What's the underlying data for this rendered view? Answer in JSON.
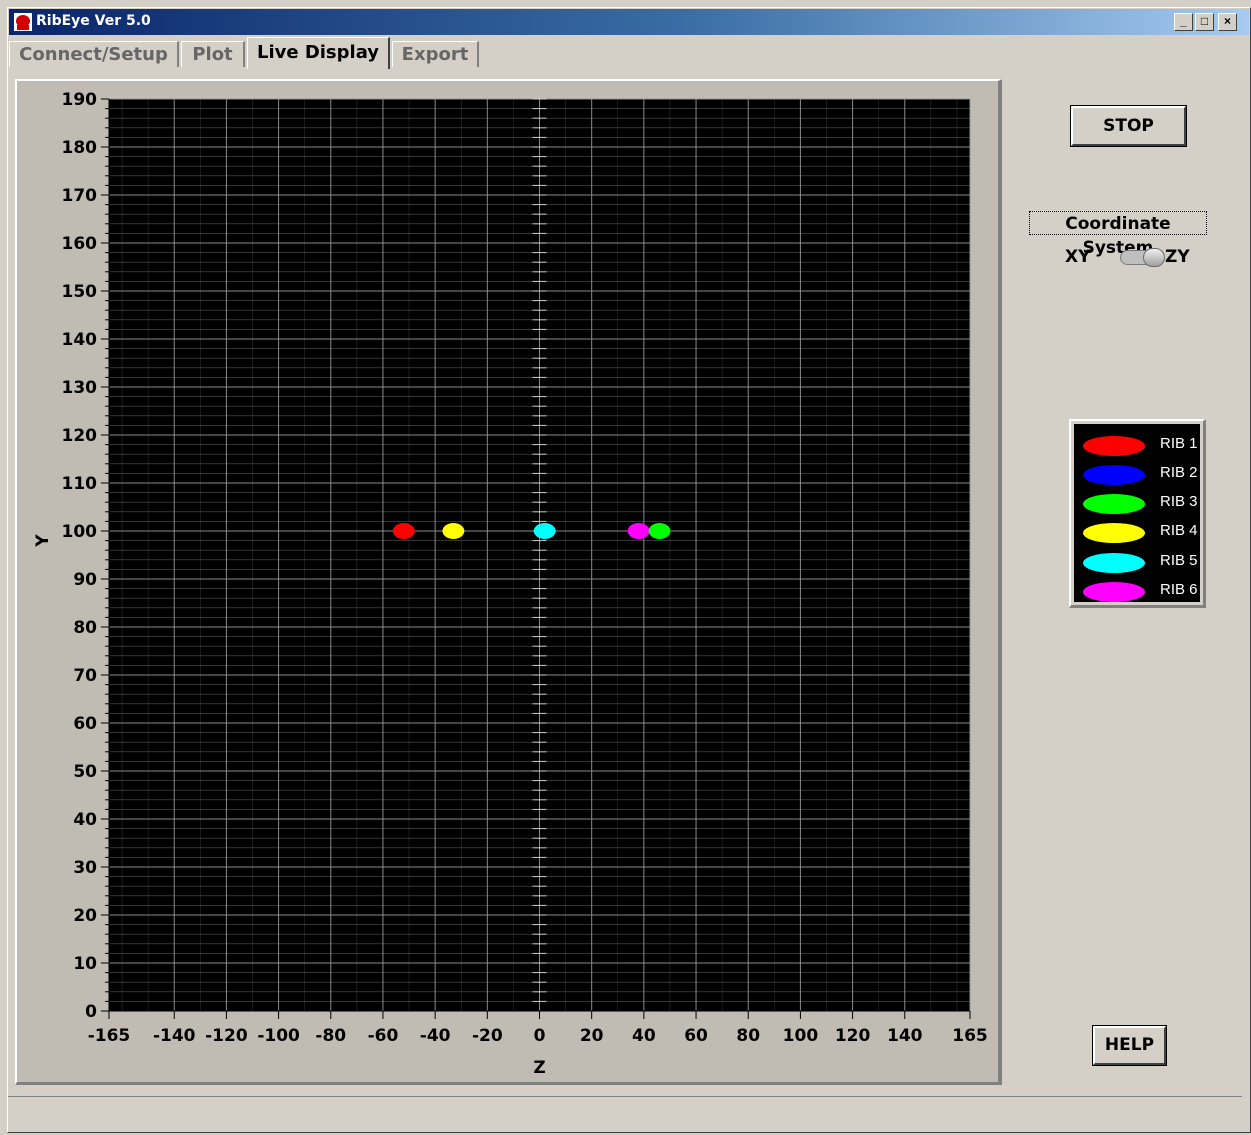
{
  "window": {
    "title": "RibEye Ver 5.0"
  },
  "titlebar_buttons": {
    "minimize": "_",
    "maximize": "□",
    "close": "×"
  },
  "tabs": [
    {
      "label": "Connect/Setup",
      "active": false
    },
    {
      "label": "Plot",
      "active": false
    },
    {
      "label": "Live Display",
      "active": true
    },
    {
      "label": "Export",
      "active": false
    }
  ],
  "controls": {
    "stop_label": "STOP",
    "help_label": "HELP",
    "coordinate_system_label": "Coordinate System",
    "option_left": "XY",
    "option_right": "ZY",
    "selected": "ZY"
  },
  "legend": [
    {
      "label": "RIB 1",
      "color": "#ff0000"
    },
    {
      "label": "RIB 2",
      "color": "#0000ff"
    },
    {
      "label": "RIB 3",
      "color": "#00ff00"
    },
    {
      "label": "RIB 4",
      "color": "#ffff00"
    },
    {
      "label": "RIB 5",
      "color": "#00ffff"
    },
    {
      "label": "RIB 6",
      "color": "#ff00ff"
    }
  ],
  "chart_data": {
    "type": "scatter",
    "xlabel": "Z",
    "ylabel": "Y",
    "xlim": [
      -165,
      165
    ],
    "ylim": [
      0,
      190
    ],
    "x_ticks": [
      -165,
      -140,
      -120,
      -100,
      -80,
      -60,
      -40,
      -20,
      0,
      20,
      40,
      60,
      80,
      100,
      120,
      140,
      165
    ],
    "y_ticks": [
      0,
      10,
      20,
      30,
      40,
      50,
      60,
      70,
      80,
      90,
      100,
      110,
      120,
      130,
      140,
      150,
      160,
      170,
      180,
      190
    ],
    "grid": true,
    "background": "#000000",
    "grid_color": "#9a9a9a",
    "series": [
      {
        "name": "RIB 1",
        "color": "#ff0000",
        "x": -52,
        "y": 100
      },
      {
        "name": "RIB 4",
        "color": "#ffff00",
        "x": -33,
        "y": 100
      },
      {
        "name": "RIB 5",
        "color": "#00ffff",
        "x": 2,
        "y": 100
      },
      {
        "name": "RIB 6",
        "color": "#ff00ff",
        "x": 38,
        "y": 100
      },
      {
        "name": "RIB 3",
        "color": "#00ff00",
        "x": 46,
        "y": 100
      }
    ]
  }
}
